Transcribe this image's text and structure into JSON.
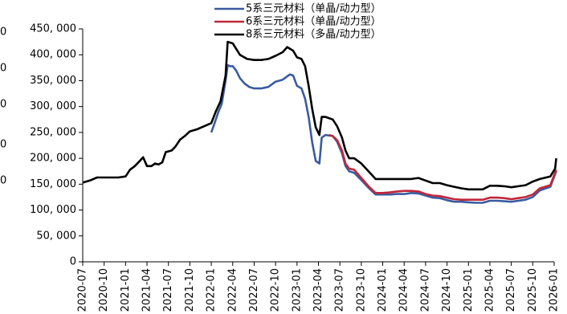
{
  "chart_data": {
    "type": "line",
    "title": "",
    "xlabel": "",
    "ylabel": "",
    "ylim": [
      0,
      450000
    ],
    "yticks": [
      0,
      50000,
      100000,
      150000,
      200000,
      250000,
      300000,
      350000,
      400000,
      450000
    ],
    "ytick_labels": [
      "0",
      "50, 000",
      "100, 000",
      "150, 000",
      "200, 000",
      "250, 000",
      "300, 000",
      "350, 000",
      "400, 000",
      "450, 000"
    ],
    "left_axis_partial_labels": [
      "0",
      "0",
      "0",
      "0",
      "0"
    ],
    "xlim": [
      "2020-07",
      "2026-01"
    ],
    "xtick_labels": [
      "2020-07",
      "2020-10",
      "2021-01",
      "2021-04",
      "2021-07",
      "2021-10",
      "2022-01",
      "2022-04",
      "2022-07",
      "2022-10",
      "2023-01",
      "2023-04",
      "2023-07",
      "2023-10",
      "2024-01",
      "2024-04",
      "2024-07",
      "2024-10",
      "2025-01",
      "2025-04",
      "2025-07",
      "2025-10",
      "2026-01"
    ],
    "grid": false,
    "legend_position": "top",
    "series": [
      {
        "name": "5系三元材料（单晶/动力型）",
        "color": "#3a5ba0",
        "points": [
          [
            "2022-01-01",
            250000
          ],
          [
            "2022-01-15",
            268000
          ],
          [
            "2022-02-01",
            290000
          ],
          [
            "2022-02-15",
            305000
          ],
          [
            "2022-03-01",
            350000
          ],
          [
            "2022-03-10",
            380000
          ],
          [
            "2022-03-20",
            378000
          ],
          [
            "2022-04-01",
            378000
          ],
          [
            "2022-04-15",
            370000
          ],
          [
            "2022-05-01",
            355000
          ],
          [
            "2022-05-20",
            345000
          ],
          [
            "2022-06-10",
            338000
          ],
          [
            "2022-07-01",
            335000
          ],
          [
            "2022-08-01",
            335000
          ],
          [
            "2022-09-01",
            338000
          ],
          [
            "2022-10-01",
            348000
          ],
          [
            "2022-11-01",
            352000
          ],
          [
            "2022-12-01",
            362000
          ],
          [
            "2022-12-15",
            360000
          ],
          [
            "2023-01-01",
            340000
          ],
          [
            "2023-01-20",
            335000
          ],
          [
            "2023-02-05",
            315000
          ],
          [
            "2023-02-20",
            280000
          ],
          [
            "2023-03-05",
            230000
          ],
          [
            "2023-03-20",
            195000
          ],
          [
            "2023-04-05",
            190000
          ],
          [
            "2023-04-15",
            240000
          ],
          [
            "2023-05-01",
            245000
          ],
          [
            "2023-06-01",
            243000
          ],
          [
            "2023-06-20",
            232000
          ],
          [
            "2023-07-10",
            210000
          ],
          [
            "2023-07-25",
            185000
          ],
          [
            "2023-08-10",
            175000
          ],
          [
            "2023-09-01",
            172000
          ],
          [
            "2023-10-01",
            158000
          ],
          [
            "2023-11-01",
            143000
          ],
          [
            "2023-12-01",
            130000
          ],
          [
            "2024-01-01",
            130000
          ],
          [
            "2024-02-01",
            130000
          ],
          [
            "2024-03-01",
            131000
          ],
          [
            "2024-04-01",
            131000
          ],
          [
            "2024-05-01",
            133000
          ],
          [
            "2024-06-01",
            132000
          ],
          [
            "2024-07-01",
            128000
          ],
          [
            "2024-08-01",
            124000
          ],
          [
            "2024-09-01",
            123000
          ],
          [
            "2024-10-01",
            119000
          ],
          [
            "2024-11-01",
            116000
          ],
          [
            "2024-12-01",
            116000
          ],
          [
            "2025-01-01",
            115000
          ],
          [
            "2025-02-01",
            114000
          ],
          [
            "2025-03-01",
            114000
          ],
          [
            "2025-04-01",
            118000
          ],
          [
            "2025-05-01",
            118000
          ],
          [
            "2025-06-01",
            117000
          ],
          [
            "2025-07-01",
            116000
          ],
          [
            "2025-08-01",
            118000
          ],
          [
            "2025-09-01",
            120000
          ],
          [
            "2025-10-01",
            125000
          ],
          [
            "2025-11-01",
            138000
          ],
          [
            "2025-12-15",
            145000
          ],
          [
            "2026-01-10",
            175000
          ]
        ]
      },
      {
        "name": "6系三元材料（单晶/动力型）",
        "color": "#c0283a",
        "points": [
          [
            "2023-05-15",
            245000
          ],
          [
            "2023-06-01",
            243000
          ],
          [
            "2023-06-20",
            235000
          ],
          [
            "2023-07-10",
            215000
          ],
          [
            "2023-07-25",
            190000
          ],
          [
            "2023-08-10",
            180000
          ],
          [
            "2023-09-01",
            178000
          ],
          [
            "2023-10-01",
            162000
          ],
          [
            "2023-11-01",
            146000
          ],
          [
            "2023-12-01",
            133000
          ],
          [
            "2024-01-01",
            133000
          ],
          [
            "2024-02-01",
            134000
          ],
          [
            "2024-03-01",
            136000
          ],
          [
            "2024-04-01",
            137000
          ],
          [
            "2024-05-01",
            137000
          ],
          [
            "2024-06-01",
            136000
          ],
          [
            "2024-07-01",
            131000
          ],
          [
            "2024-08-01",
            128000
          ],
          [
            "2024-09-01",
            127000
          ],
          [
            "2024-10-01",
            124000
          ],
          [
            "2024-11-01",
            121000
          ],
          [
            "2024-12-01",
            120000
          ],
          [
            "2025-01-01",
            120000
          ],
          [
            "2025-02-01",
            120000
          ],
          [
            "2025-03-01",
            120000
          ],
          [
            "2025-04-01",
            124000
          ],
          [
            "2025-05-01",
            124000
          ],
          [
            "2025-06-01",
            123000
          ],
          [
            "2025-07-01",
            121000
          ],
          [
            "2025-08-01",
            123000
          ],
          [
            "2025-09-01",
            125000
          ],
          [
            "2025-10-01",
            130000
          ],
          [
            "2025-11-01",
            142000
          ],
          [
            "2025-12-15",
            148000
          ],
          [
            "2026-01-10",
            178000
          ]
        ]
      },
      {
        "name": "8系三元材料（多晶/动力型）",
        "color": "#000000",
        "points": [
          [
            "2020-07-01",
            153000
          ],
          [
            "2020-08-01",
            157000
          ],
          [
            "2020-09-01",
            163000
          ],
          [
            "2020-10-01",
            163000
          ],
          [
            "2020-11-01",
            163000
          ],
          [
            "2020-12-01",
            163000
          ],
          [
            "2021-01-01",
            165000
          ],
          [
            "2021-01-20",
            178000
          ],
          [
            "2021-02-10",
            185000
          ],
          [
            "2021-03-01",
            195000
          ],
          [
            "2021-03-15",
            202000
          ],
          [
            "2021-04-01",
            185000
          ],
          [
            "2021-04-20",
            185000
          ],
          [
            "2021-05-05",
            190000
          ],
          [
            "2021-05-20",
            188000
          ],
          [
            "2021-06-05",
            192000
          ],
          [
            "2021-06-20",
            212000
          ],
          [
            "2021-07-15",
            215000
          ],
          [
            "2021-08-01",
            223000
          ],
          [
            "2021-08-20",
            236000
          ],
          [
            "2021-09-10",
            243000
          ],
          [
            "2021-10-01",
            252000
          ],
          [
            "2021-11-01",
            256000
          ],
          [
            "2021-12-01",
            262000
          ],
          [
            "2022-01-01",
            268000
          ],
          [
            "2022-01-20",
            290000
          ],
          [
            "2022-02-10",
            310000
          ],
          [
            "2022-03-01",
            360000
          ],
          [
            "2022-03-10",
            425000
          ],
          [
            "2022-04-01",
            422000
          ],
          [
            "2022-05-01",
            400000
          ],
          [
            "2022-06-01",
            392000
          ],
          [
            "2022-07-01",
            390000
          ],
          [
            "2022-08-01",
            390000
          ],
          [
            "2022-09-01",
            392000
          ],
          [
            "2022-10-01",
            398000
          ],
          [
            "2022-11-01",
            405000
          ],
          [
            "2022-11-20",
            415000
          ],
          [
            "2022-12-15",
            408000
          ],
          [
            "2023-01-01",
            395000
          ],
          [
            "2023-01-20",
            392000
          ],
          [
            "2023-02-05",
            378000
          ],
          [
            "2023-02-20",
            340000
          ],
          [
            "2023-03-05",
            295000
          ],
          [
            "2023-03-20",
            260000
          ],
          [
            "2023-04-05",
            245000
          ],
          [
            "2023-04-15",
            280000
          ],
          [
            "2023-05-01",
            280000
          ],
          [
            "2023-06-01",
            275000
          ],
          [
            "2023-06-20",
            262000
          ],
          [
            "2023-07-10",
            240000
          ],
          [
            "2023-07-25",
            215000
          ],
          [
            "2023-08-10",
            200000
          ],
          [
            "2023-09-01",
            200000
          ],
          [
            "2023-10-01",
            190000
          ],
          [
            "2023-11-01",
            175000
          ],
          [
            "2023-12-01",
            160000
          ],
          [
            "2024-01-01",
            160000
          ],
          [
            "2024-03-01",
            160000
          ],
          [
            "2024-05-01",
            160000
          ],
          [
            "2024-06-01",
            162000
          ],
          [
            "2024-07-01",
            157000
          ],
          [
            "2024-08-01",
            152000
          ],
          [
            "2024-09-01",
            152000
          ],
          [
            "2024-10-01",
            148000
          ],
          [
            "2024-11-01",
            145000
          ],
          [
            "2024-12-01",
            142000
          ],
          [
            "2025-01-01",
            140000
          ],
          [
            "2025-02-01",
            140000
          ],
          [
            "2025-03-01",
            140000
          ],
          [
            "2025-04-01",
            147000
          ],
          [
            "2025-05-01",
            147000
          ],
          [
            "2025-06-01",
            146000
          ],
          [
            "2025-07-01",
            144000
          ],
          [
            "2025-08-01",
            146000
          ],
          [
            "2025-09-01",
            148000
          ],
          [
            "2025-10-01",
            155000
          ],
          [
            "2025-11-01",
            160000
          ],
          [
            "2025-12-15",
            165000
          ],
          [
            "2026-01-05",
            180000
          ],
          [
            "2026-01-10",
            200000
          ]
        ]
      }
    ]
  }
}
